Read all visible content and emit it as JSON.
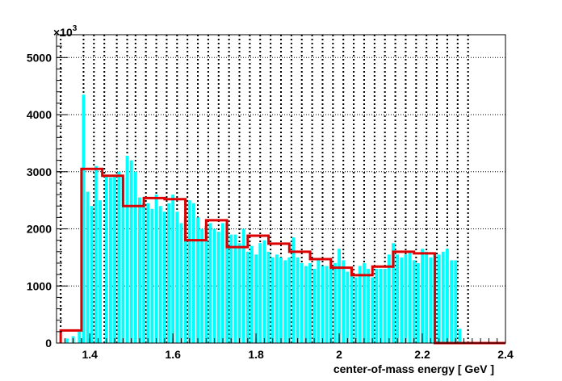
{
  "chart_data": {
    "type": "bar",
    "title": "",
    "xlabel": "center-of-mass energy [ GeV ]",
    "ylabel": "",
    "y_multiplier_label": "×10",
    "y_multiplier_exponent": "3",
    "xlim": [
      1.32,
      2.4
    ],
    "ylim": [
      0,
      5400
    ],
    "grid": true,
    "x_ticks": [
      1.4,
      1.6,
      1.8,
      2.0,
      2.2,
      2.4
    ],
    "x_tick_labels": [
      "1.4",
      "1.6",
      "1.8",
      "2",
      "2.2",
      "2.4"
    ],
    "y_ticks": [
      0,
      1000,
      2000,
      3000,
      4000,
      5000
    ],
    "y_tick_labels": [
      "0",
      "1000",
      "2000",
      "3000",
      "4000",
      "5000"
    ],
    "x_grid_lines": [
      1.33,
      1.385,
      1.41,
      1.435,
      1.465,
      1.49,
      1.51,
      1.535,
      1.56,
      1.585,
      1.61,
      1.635,
      1.66,
      1.685,
      1.71,
      1.735,
      1.76,
      1.785,
      1.81,
      1.835,
      1.86,
      1.885,
      1.91,
      1.935,
      1.96,
      1.985,
      2.01,
      2.035,
      2.06,
      2.085,
      2.11,
      2.135,
      2.16,
      2.185,
      2.21,
      2.235,
      2.26,
      2.285,
      2.31
    ],
    "series": [
      {
        "kind": "bars",
        "color": "#00ffff",
        "x": [
          1.345,
          1.36,
          1.375,
          1.385,
          1.395,
          1.405,
          1.415,
          1.425,
          1.44,
          1.45,
          1.46,
          1.47,
          1.48,
          1.49,
          1.5,
          1.51,
          1.52,
          1.53,
          1.54,
          1.55,
          1.56,
          1.57,
          1.58,
          1.59,
          1.6,
          1.61,
          1.62,
          1.63,
          1.64,
          1.65,
          1.66,
          1.67,
          1.68,
          1.69,
          1.7,
          1.71,
          1.72,
          1.73,
          1.74,
          1.75,
          1.76,
          1.77,
          1.78,
          1.79,
          1.8,
          1.81,
          1.82,
          1.83,
          1.84,
          1.85,
          1.86,
          1.87,
          1.88,
          1.89,
          1.9,
          1.91,
          1.92,
          1.93,
          1.94,
          1.95,
          1.96,
          1.97,
          1.98,
          1.99,
          2.0,
          2.01,
          2.02,
          2.03,
          2.04,
          2.05,
          2.06,
          2.07,
          2.08,
          2.09,
          2.1,
          2.11,
          2.12,
          2.13,
          2.14,
          2.15,
          2.16,
          2.17,
          2.18,
          2.19,
          2.2,
          2.21,
          2.22,
          2.23,
          2.24,
          2.25,
          2.26,
          2.27,
          2.28,
          2.29
        ],
        "values": [
          80,
          120,
          200,
          4350,
          2650,
          2400,
          3100,
          2500,
          2950,
          2900,
          2950,
          3000,
          2900,
          3280,
          3200,
          3000,
          2550,
          2450,
          2450,
          2350,
          2600,
          2400,
          2300,
          2450,
          2600,
          2300,
          2100,
          2200,
          2500,
          2450,
          2200,
          2000,
          2050,
          2100,
          2000,
          1950,
          2100,
          2100,
          1900,
          1900,
          1750,
          2000,
          1600,
          1700,
          1550,
          1750,
          1800,
          1600,
          1500,
          1550,
          1500,
          1450,
          1500,
          1850,
          1500,
          1400,
          1350,
          1400,
          1300,
          1450,
          1350,
          1350,
          1300,
          1400,
          1650,
          1450,
          1250,
          1300,
          1150,
          1350,
          1400,
          1300,
          1150,
          1300,
          1300,
          1300,
          1550,
          1750,
          1550,
          1500,
          1550,
          1600,
          1450,
          1400,
          1650,
          1600,
          1500,
          1550,
          1550,
          1600,
          1650,
          1450,
          1450,
          250
        ]
      },
      {
        "kind": "step",
        "color": "#dd0000",
        "edges": [
          1.33,
          1.38,
          1.43,
          1.48,
          1.53,
          1.58,
          1.63,
          1.68,
          1.73,
          1.78,
          1.83,
          1.88,
          1.93,
          1.98,
          2.03,
          2.08,
          2.13,
          2.18,
          2.23,
          2.4
        ],
        "values": [
          220,
          3050,
          2930,
          2400,
          2540,
          2520,
          1800,
          2150,
          1680,
          1880,
          1740,
          1600,
          1470,
          1320,
          1190,
          1340,
          1600,
          1570,
          0
        ]
      }
    ]
  }
}
